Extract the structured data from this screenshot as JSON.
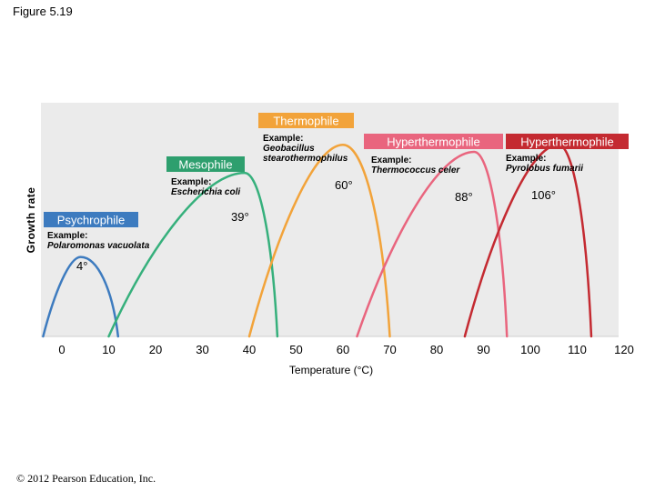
{
  "figure_title": "Figure 5.19",
  "copyright": "© 2012 Pearson Education, Inc.",
  "chart_data": {
    "type": "line",
    "title": "",
    "xlabel": "Temperature (°C)",
    "ylabel": "Growth rate",
    "xlim": [
      0,
      120
    ],
    "x_ticks": [
      0,
      10,
      20,
      30,
      40,
      50,
      60,
      70,
      80,
      90,
      100,
      110,
      120
    ],
    "grid": false,
    "series": [
      {
        "name": "Psychrophile",
        "example_label": "Example:",
        "example": "Polaromonas vacuolata",
        "min": -4,
        "optimum": 4,
        "max": 12,
        "peak": 0.34,
        "optimum_label": "4°",
        "color": "#3d7bbf",
        "label_color": "#3d7bbf"
      },
      {
        "name": "Mesophile",
        "example_label": "Example:",
        "example": "Escherichia coli",
        "min": 10,
        "optimum": 39,
        "max": 46,
        "peak": 0.7,
        "optimum_label": "39°",
        "color": "#36b07c",
        "label_color": "#2e9f6e"
      },
      {
        "name": "Thermophile",
        "example_label": "Example:",
        "example": "Geobacillus stearothermophilus",
        "min": 40,
        "optimum": 60,
        "max": 70,
        "peak": 0.82,
        "optimum_label": "60°",
        "color": "#f2a33a",
        "label_color": "#f2a33a"
      },
      {
        "name": "Hyperthermophile",
        "example_label": "Example:",
        "example": "Thermococcus celer",
        "min": 63,
        "optimum": 88,
        "max": 95,
        "peak": 0.79,
        "optimum_label": "88°",
        "color": "#e9657e",
        "label_color": "#e9657e"
      },
      {
        "name": "Hyperthermophile",
        "example_label": "Example:",
        "example": "Pyrolobus fumarii",
        "min": 86,
        "optimum": 106,
        "max": 113,
        "peak": 0.82,
        "optimum_label": "106°",
        "color": "#c42a31",
        "label_color": "#c42a31"
      }
    ]
  }
}
